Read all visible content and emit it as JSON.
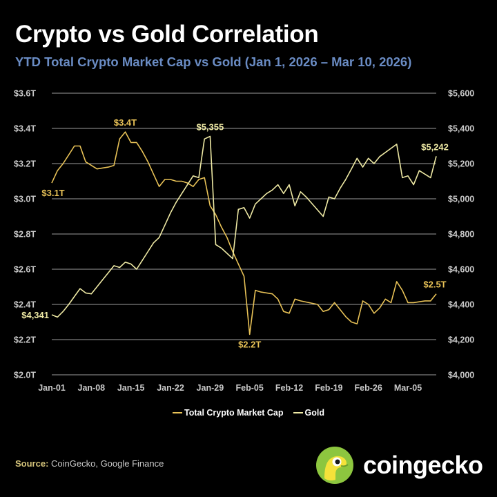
{
  "header": {
    "title": "Crypto vs Gold Correlation",
    "subtitle": "YTD Total Crypto Market Cap vs Gold (Jan 1, 2026 – Mar 10, 2026)"
  },
  "legend": {
    "items": [
      {
        "label": "Total Crypto Market Cap",
        "color": "#e8c257"
      },
      {
        "label": "Gold",
        "color": "#eee9a4"
      }
    ]
  },
  "source": {
    "label": "Source:",
    "text": "CoinGecko, Google Finance"
  },
  "brand": {
    "name": "coingecko",
    "logo_icon": "gecko-logo-icon",
    "logo_color": "#8dc63f"
  },
  "chart_data": {
    "type": "line",
    "x_tick_labels": [
      "Jan-01",
      "Jan-08",
      "Jan-15",
      "Jan-22",
      "Jan-29",
      "Feb-05",
      "Feb-12",
      "Feb-19",
      "Feb-26",
      "Mar-05"
    ],
    "x_range": [
      "2026-01-01",
      "2026-03-10"
    ],
    "y_left": {
      "ticks": [
        "$2.0T",
        "$2.2T",
        "$2.4T",
        "$2.6T",
        "$2.8T",
        "$3.0T",
        "$3.2T",
        "$3.4T",
        "$3.6T"
      ],
      "range": [
        2.0,
        3.6
      ],
      "unit": "trillion USD"
    },
    "y_right": {
      "ticks": [
        "$4,000",
        "$4,200",
        "$4,400",
        "$4,600",
        "$4,800",
        "$5,000",
        "$5,200",
        "$5,400",
        "$5,600"
      ],
      "range": [
        4000,
        5600
      ],
      "unit": "USD"
    },
    "grid": "horizontal",
    "legend_position": "bottom",
    "series": [
      {
        "name": "Total Crypto Market Cap",
        "axis": "left",
        "color": "#e8c257",
        "points": [
          [
            "2026-01-01",
            3.09
          ],
          [
            "2026-01-02",
            3.16
          ],
          [
            "2026-01-03",
            3.2
          ],
          [
            "2026-01-04",
            3.25
          ],
          [
            "2026-01-05",
            3.3
          ],
          [
            "2026-01-06",
            3.3
          ],
          [
            "2026-01-07",
            3.21
          ],
          [
            "2026-01-08",
            3.19
          ],
          [
            "2026-01-09",
            3.17
          ],
          [
            "2026-01-11",
            3.18
          ],
          [
            "2026-01-12",
            3.19
          ],
          [
            "2026-01-13",
            3.34
          ],
          [
            "2026-01-14",
            3.38
          ],
          [
            "2026-01-15",
            3.32
          ],
          [
            "2026-01-16",
            3.32
          ],
          [
            "2026-01-17",
            3.27
          ],
          [
            "2026-01-18",
            3.21
          ],
          [
            "2026-01-19",
            3.14
          ],
          [
            "2026-01-20",
            3.07
          ],
          [
            "2026-01-21",
            3.11
          ],
          [
            "2026-01-22",
            3.11
          ],
          [
            "2026-01-23",
            3.1
          ],
          [
            "2026-01-24",
            3.1
          ],
          [
            "2026-01-25",
            3.09
          ],
          [
            "2026-01-26",
            3.07
          ],
          [
            "2026-01-27",
            3.11
          ],
          [
            "2026-01-28",
            3.12
          ],
          [
            "2026-01-29",
            2.96
          ],
          [
            "2026-01-30",
            2.91
          ],
          [
            "2026-01-31",
            2.84
          ],
          [
            "2026-02-01",
            2.78
          ],
          [
            "2026-02-02",
            2.7
          ],
          [
            "2026-02-03",
            2.63
          ],
          [
            "2026-02-04",
            2.56
          ],
          [
            "2026-02-05",
            2.23
          ],
          [
            "2026-02-06",
            2.48
          ],
          [
            "2026-02-07",
            2.47
          ],
          [
            "2026-02-09",
            2.46
          ],
          [
            "2026-02-10",
            2.43
          ],
          [
            "2026-02-11",
            2.36
          ],
          [
            "2026-02-12",
            2.35
          ],
          [
            "2026-02-13",
            2.43
          ],
          [
            "2026-02-14",
            2.42
          ],
          [
            "2026-02-17",
            2.4
          ],
          [
            "2026-02-18",
            2.36
          ],
          [
            "2026-02-19",
            2.37
          ],
          [
            "2026-02-20",
            2.41
          ],
          [
            "2026-02-21",
            2.37
          ],
          [
            "2026-02-22",
            2.33
          ],
          [
            "2026-02-23",
            2.3
          ],
          [
            "2026-02-24",
            2.29
          ],
          [
            "2026-02-25",
            2.42
          ],
          [
            "2026-02-26",
            2.4
          ],
          [
            "2026-02-27",
            2.35
          ],
          [
            "2026-02-28",
            2.38
          ],
          [
            "2026-03-01",
            2.43
          ],
          [
            "2026-03-02",
            2.41
          ],
          [
            "2026-03-03",
            2.53
          ],
          [
            "2026-03-04",
            2.48
          ],
          [
            "2026-03-05",
            2.41
          ],
          [
            "2026-03-06",
            2.41
          ],
          [
            "2026-03-08",
            2.42
          ],
          [
            "2026-03-09",
            2.42
          ],
          [
            "2026-03-10",
            2.46
          ]
        ]
      },
      {
        "name": "Gold",
        "axis": "right",
        "color": "#eee9a4",
        "points": [
          [
            "2026-01-01",
            4341
          ],
          [
            "2026-01-02",
            4328
          ],
          [
            "2026-01-03",
            4360
          ],
          [
            "2026-01-04",
            4400
          ],
          [
            "2026-01-05",
            4445
          ],
          [
            "2026-01-06",
            4490
          ],
          [
            "2026-01-07",
            4465
          ],
          [
            "2026-01-08",
            4460
          ],
          [
            "2026-01-09",
            4500
          ],
          [
            "2026-01-10",
            4540
          ],
          [
            "2026-01-11",
            4580
          ],
          [
            "2026-01-12",
            4620
          ],
          [
            "2026-01-13",
            4610
          ],
          [
            "2026-01-14",
            4640
          ],
          [
            "2026-01-15",
            4630
          ],
          [
            "2026-01-16",
            4600
          ],
          [
            "2026-01-17",
            4650
          ],
          [
            "2026-01-18",
            4700
          ],
          [
            "2026-01-19",
            4750
          ],
          [
            "2026-01-20",
            4780
          ],
          [
            "2026-01-21",
            4850
          ],
          [
            "2026-01-22",
            4920
          ],
          [
            "2026-01-23",
            4980
          ],
          [
            "2026-01-24",
            5030
          ],
          [
            "2026-01-25",
            5080
          ],
          [
            "2026-01-26",
            5130
          ],
          [
            "2026-01-27",
            5120
          ],
          [
            "2026-01-28",
            5340
          ],
          [
            "2026-01-29",
            5355
          ],
          [
            "2026-01-30",
            4740
          ],
          [
            "2026-01-31",
            4720
          ],
          [
            "2026-02-01",
            4690
          ],
          [
            "2026-02-02",
            4660
          ],
          [
            "2026-02-03",
            4940
          ],
          [
            "2026-02-04",
            4950
          ],
          [
            "2026-02-05",
            4890
          ],
          [
            "2026-02-06",
            4970
          ],
          [
            "2026-02-07",
            5000
          ],
          [
            "2026-02-08",
            5030
          ],
          [
            "2026-02-09",
            5050
          ],
          [
            "2026-02-10",
            5080
          ],
          [
            "2026-02-11",
            5030
          ],
          [
            "2026-02-12",
            5080
          ],
          [
            "2026-02-13",
            4960
          ],
          [
            "2026-02-14",
            5040
          ],
          [
            "2026-02-15",
            5010
          ],
          [
            "2026-02-18",
            4900
          ],
          [
            "2026-02-19",
            5010
          ],
          [
            "2026-02-20",
            5000
          ],
          [
            "2026-02-21",
            5060
          ],
          [
            "2026-02-22",
            5110
          ],
          [
            "2026-02-23",
            5170
          ],
          [
            "2026-02-24",
            5230
          ],
          [
            "2026-02-25",
            5180
          ],
          [
            "2026-02-26",
            5230
          ],
          [
            "2026-02-27",
            5200
          ],
          [
            "2026-02-28",
            5240
          ],
          [
            "2026-03-03",
            5310
          ],
          [
            "2026-03-04",
            5120
          ],
          [
            "2026-03-05",
            5130
          ],
          [
            "2026-03-06",
            5080
          ],
          [
            "2026-03-07",
            5160
          ],
          [
            "2026-03-09",
            5120
          ],
          [
            "2026-03-10",
            5242
          ]
        ]
      }
    ],
    "annotations": [
      {
        "text": "$3.1T",
        "series": "Total Crypto Market Cap",
        "x": "2026-01-01",
        "y": 3.09,
        "anchor": "below"
      },
      {
        "text": "$3.4T",
        "series": "Total Crypto Market Cap",
        "x": "2026-01-14",
        "y": 3.38,
        "anchor": "above"
      },
      {
        "text": "$2.2T",
        "series": "Total Crypto Market Cap",
        "x": "2026-02-05",
        "y": 2.23,
        "anchor": "below"
      },
      {
        "text": "$2.5T",
        "series": "Total Crypto Market Cap",
        "x": "2026-03-10",
        "y": 2.46,
        "anchor": "above"
      },
      {
        "text": "$4,341",
        "series": "Gold",
        "x": "2026-01-01",
        "y": 4341,
        "anchor": "left"
      },
      {
        "text": "$5,355",
        "series": "Gold",
        "x": "2026-01-29",
        "y": 5355,
        "anchor": "above"
      },
      {
        "text": "$5,242",
        "series": "Gold",
        "x": "2026-03-10",
        "y": 5242,
        "anchor": "above"
      }
    ]
  }
}
